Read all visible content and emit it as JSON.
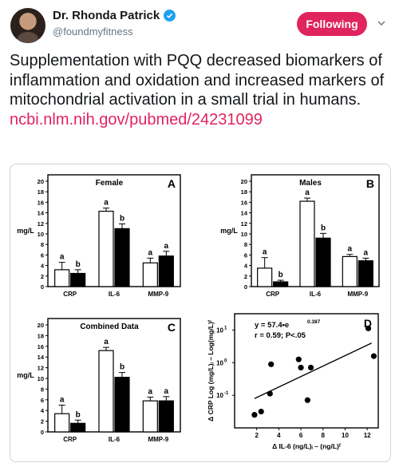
{
  "user": {
    "name": "Dr. Rhonda Patrick",
    "handle": "@foundmyfitness"
  },
  "icons": {
    "verified": "verified-badge-icon",
    "chevron": "chevron-down-icon",
    "avatar": "avatar-photo"
  },
  "colors": {
    "accent": "#e0245e",
    "verified": "#1da1f2",
    "handle": "#657786"
  },
  "follow_button": {
    "label": "Following"
  },
  "tweet": {
    "text": "Supplementation with PQQ decreased biomarkers of inflammation and oxidation and increased markers of mitochondrial activation in a small trial in humans.",
    "link": "ncbi.nlm.nih.gov/pubmed/24231099"
  },
  "chart_data": [
    {
      "type": "bar",
      "title": "Female",
      "panel": "A",
      "ylabel": "mg/L",
      "ylim": [
        0,
        20
      ],
      "yticks": [
        "0",
        "2",
        "4",
        "6",
        "8",
        "10",
        "12",
        "14",
        "16",
        "18",
        "20"
      ],
      "categories": [
        "CRP",
        "IL-6",
        "MMP-9"
      ],
      "series": [
        {
          "fill": "white",
          "values": [
            3.2,
            14.3,
            4.5
          ],
          "errors": [
            1.4,
            0.6,
            0.9
          ]
        },
        {
          "fill": "black",
          "values": [
            2.5,
            11.0,
            5.8
          ],
          "errors": [
            0.7,
            0.9,
            0.9
          ]
        }
      ],
      "letters": [
        [
          "a",
          "b"
        ],
        [
          "a",
          "b"
        ],
        [
          "a",
          "a"
        ]
      ]
    },
    {
      "type": "bar",
      "title": "Males",
      "panel": "B",
      "ylabel": "mg/L",
      "ylim": [
        0,
        20
      ],
      "yticks": [
        "0",
        "2",
        "4",
        "6",
        "8",
        "10",
        "12",
        "14",
        "16",
        "18",
        "20"
      ],
      "categories": [
        "CRP",
        "IL-6",
        "MMP-9"
      ],
      "series": [
        {
          "fill": "white",
          "values": [
            3.5,
            16.2,
            5.7
          ],
          "errors": [
            2.0,
            0.6,
            0.4
          ]
        },
        {
          "fill": "black",
          "values": [
            0.9,
            9.2,
            4.9
          ],
          "errors": [
            0.3,
            0.9,
            0.5
          ]
        }
      ],
      "letters": [
        [
          "a",
          "b"
        ],
        [
          "a",
          "b"
        ],
        [
          "a",
          "a"
        ]
      ]
    },
    {
      "type": "bar",
      "title": "Combined Data",
      "panel": "C",
      "ylabel": "mg/L",
      "ylim": [
        0,
        20
      ],
      "yticks": [
        "0",
        "2",
        "4",
        "6",
        "8",
        "10",
        "12",
        "14",
        "16",
        "18",
        "20"
      ],
      "categories": [
        "CRP",
        "IL-6",
        "MMP-9"
      ],
      "series": [
        {
          "fill": "white",
          "values": [
            3.4,
            15.2,
            5.8
          ],
          "errors": [
            1.6,
            0.6,
            0.7
          ]
        },
        {
          "fill": "black",
          "values": [
            1.6,
            10.2,
            5.8
          ],
          "errors": [
            0.6,
            0.9,
            0.8
          ]
        }
      ],
      "letters": [
        [
          "a",
          "b"
        ],
        [
          "a",
          "b"
        ],
        [
          "a",
          "a"
        ]
      ]
    },
    {
      "type": "scatter",
      "panel": "D",
      "scale_y": "log",
      "equation": "y = 57.4•e",
      "equation_exp": "0.387",
      "stats": "r = 0.59; P<.05",
      "xlabel": "Δ IL-6 (ng/L)ᵢ – (ng/L)ᶠ",
      "ylabel": "Δ CRP Log (mg/L)ᵢ – Log(mg/L)ᶠ",
      "xlim": [
        0,
        13
      ],
      "ylim_log10": [
        -2,
        1.5
      ],
      "xticks": [
        "2",
        "4",
        "6",
        "8",
        "10",
        "12"
      ],
      "yticks": [
        {
          "base": "10",
          "exp": "1",
          "value": 1
        },
        {
          "base": "10",
          "exp": "0",
          "value": 0
        },
        {
          "base": "10",
          "exp": "-1",
          "value": -1
        }
      ],
      "points": [
        {
          "x": 1.8,
          "y_log10": -1.6
        },
        {
          "x": 2.4,
          "y_log10": -1.5
        },
        {
          "x": 3.2,
          "y_log10": -0.95
        },
        {
          "x": 3.3,
          "y_log10": -0.05
        },
        {
          "x": 5.8,
          "y_log10": 0.1
        },
        {
          "x": 6.0,
          "y_log10": -0.15
        },
        {
          "x": 6.6,
          "y_log10": -1.15
        },
        {
          "x": 6.9,
          "y_log10": -0.15
        },
        {
          "x": 12.1,
          "y_log10": 1.05
        },
        {
          "x": 12.6,
          "y_log10": 0.2
        }
      ],
      "trend": [
        {
          "x": 1.8,
          "y_log10": -1.1
        },
        {
          "x": 12.4,
          "y_log10": 0.6
        }
      ]
    }
  ]
}
